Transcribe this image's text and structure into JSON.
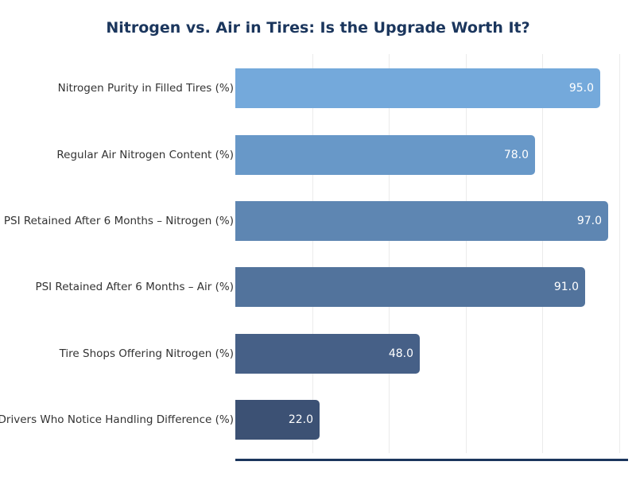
{
  "chart_data": {
    "type": "bar",
    "orientation": "horizontal",
    "title": "Nitrogen vs. Air in Tires: Is the Upgrade Worth It?",
    "xlabel": "",
    "ylabel": "",
    "categories": [
      "Nitrogen Purity in Filled Tires (%)",
      "Regular Air Nitrogen Content (%)",
      "PSI Retained After 6 Months – Nitrogen (%)",
      "PSI Retained After 6 Months – Air (%)",
      "Tire Shops Offering Nitrogen (%)",
      "Drivers Who Notice Handling Difference (%)"
    ],
    "values": [
      95.0,
      78.0,
      97.0,
      91.0,
      48.0,
      22.0
    ],
    "value_labels": [
      "95.0",
      "78.0",
      "97.0",
      "91.0",
      "48.0",
      "22.0"
    ],
    "colors": [
      "#74a9db",
      "#6898c8",
      "#5e86b2",
      "#52739c",
      "#466087",
      "#3c5174"
    ],
    "xlim": [
      0,
      102
    ],
    "grid": {
      "x": true,
      "y": false,
      "ticks": [
        20,
        40,
        60,
        80,
        100
      ]
    },
    "tick_labels_visible": false,
    "legend": null
  },
  "title_color": "#1b365d",
  "axis_color": "#1b365d"
}
